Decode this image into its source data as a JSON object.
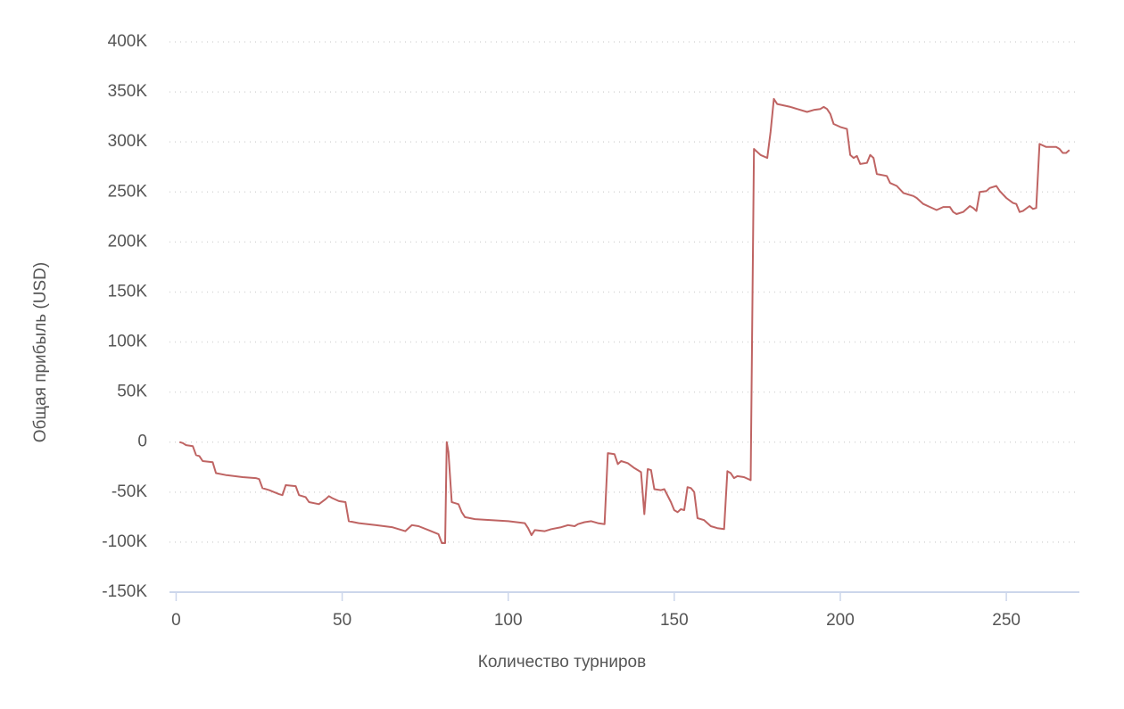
{
  "chart_data": {
    "type": "line",
    "x_label": "Количество турниров",
    "y_label": "Общая прибыль (USD)",
    "color": "#bf6463",
    "grid": true,
    "xlim": [
      -2,
      272
    ],
    "xticks": [
      0,
      50,
      100,
      150,
      200,
      250
    ],
    "ylim": [
      -150000,
      400000
    ],
    "yticks": [
      {
        "value": -150000,
        "label": "-150K"
      },
      {
        "value": -100000,
        "label": "-100K"
      },
      {
        "value": -50000,
        "label": "-50K"
      },
      0,
      {
        "value": 50000,
        "label": "50K"
      },
      {
        "value": 100000,
        "label": "100K"
      },
      {
        "value": 150000,
        "label": "150K"
      },
      {
        "value": 200000,
        "label": "200K"
      },
      {
        "value": 250000,
        "label": "250K"
      },
      {
        "value": 300000,
        "label": "300K"
      },
      {
        "value": 350000,
        "label": "350K"
      },
      {
        "value": 400000,
        "label": "400K"
      }
    ],
    "x": [
      1,
      2,
      3,
      5,
      6,
      7,
      8,
      11,
      12,
      15,
      20,
      24,
      25,
      26,
      28,
      31,
      32,
      33,
      36,
      37,
      39,
      40,
      43,
      45,
      46,
      47,
      49,
      51,
      52,
      55,
      60,
      65,
      69,
      71,
      73,
      76,
      79,
      80,
      81,
      81.5,
      82,
      83,
      85,
      86,
      87,
      90,
      95,
      100,
      105,
      106,
      107,
      108,
      111,
      113,
      116,
      118,
      120,
      121,
      123,
      125,
      127,
      129,
      130,
      132,
      133,
      134,
      136,
      138,
      139,
      140,
      141,
      142,
      143,
      144,
      146,
      147,
      149,
      150,
      151,
      152,
      153,
      154,
      155,
      156,
      157,
      159,
      161,
      163,
      165,
      166,
      167,
      168,
      169,
      171,
      173,
      174,
      176,
      178,
      179,
      180,
      181,
      185,
      187,
      190,
      192,
      194,
      195,
      196,
      197,
      198,
      200,
      202,
      203,
      204,
      205,
      206,
      208,
      209,
      210,
      211,
      214,
      215,
      217,
      219,
      222,
      223,
      225,
      227,
      229,
      231,
      233,
      234,
      235,
      237,
      239,
      240,
      241,
      242,
      244,
      245,
      247,
      248,
      250,
      252,
      253,
      254,
      255,
      257,
      258,
      259,
      260,
      262,
      265,
      266,
      267,
      268,
      269
    ],
    "values": [
      0,
      -1000,
      -3000,
      -4000,
      -13000,
      -14000,
      -19000,
      -20000,
      -31000,
      -33000,
      -35000,
      -36000,
      -37000,
      -46000,
      -48000,
      -52000,
      -53000,
      -43000,
      -44000,
      -53000,
      -55000,
      -60000,
      -62000,
      -57000,
      -54000,
      -56000,
      -59000,
      -60000,
      -79000,
      -81000,
      -83000,
      -85000,
      -89000,
      -83000,
      -84000,
      -88000,
      -92000,
      -101000,
      -101000,
      0,
      -10000,
      -60000,
      -62000,
      -70000,
      -75000,
      -77000,
      -78000,
      -79000,
      -81000,
      -86000,
      -93000,
      -88000,
      -89000,
      -87000,
      -85000,
      -83000,
      -84000,
      -82000,
      -80000,
      -79000,
      -81000,
      -82000,
      -11000,
      -12000,
      -22000,
      -19000,
      -21000,
      -26000,
      -28000,
      -30000,
      -72000,
      -27000,
      -28000,
      -47000,
      -48000,
      -47000,
      -60000,
      -68000,
      -70000,
      -67000,
      -68000,
      -45000,
      -46000,
      -50000,
      -76000,
      -78000,
      -84000,
      -86000,
      -87000,
      -29000,
      -31000,
      -36000,
      -34000,
      -35000,
      -38000,
      293000,
      287000,
      284000,
      310000,
      343000,
      338000,
      335000,
      333000,
      330000,
      332000,
      333000,
      335000,
      333000,
      328000,
      318000,
      315000,
      313000,
      287000,
      284000,
      286000,
      278000,
      279000,
      287000,
      284000,
      268000,
      266000,
      259000,
      256000,
      249000,
      246000,
      244000,
      238000,
      235000,
      232000,
      235000,
      235000,
      230000,
      228000,
      230000,
      236000,
      234000,
      231000,
      250000,
      251000,
      254000,
      256000,
      251000,
      244000,
      239000,
      238000,
      230000,
      231000,
      236000,
      233000,
      234000,
      298000,
      295000,
      295000,
      293000,
      289000,
      289000,
      292000
    ]
  }
}
